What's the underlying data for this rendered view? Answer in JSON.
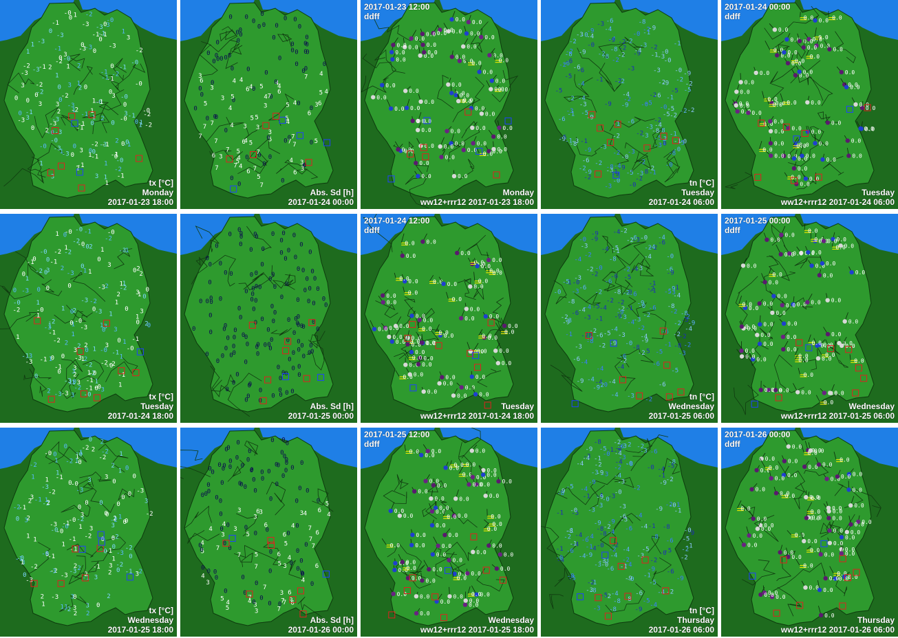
{
  "colors": {
    "sea": "#1f7fe6",
    "outside_land": "#1e6b1e",
    "germany_land": "#2e9a2e",
    "label_text": "#ffffff"
  },
  "rows": [
    {
      "tiles": [
        {
          "type": "tx",
          "variable_label": "tx [°C]",
          "day": "Monday",
          "datetime": "2017-01-23 18:00"
        },
        {
          "type": "sd",
          "variable_label": "Abs. Sd [h]",
          "datetime": "2017-01-24 00:00"
        },
        {
          "type": "ww",
          "top_datetime": "2017-01-23 12:00",
          "top_sub": "ddff",
          "day": "Monday",
          "bottom": "ww12+rrr12 2017-01-23 18:00"
        },
        {
          "type": "tn",
          "variable_label": "tn [°C]",
          "day": "Tuesday",
          "datetime": "2017-01-24 06:00"
        },
        {
          "type": "ww",
          "top_datetime": "2017-01-24 00:00",
          "top_sub": "ddff",
          "day": "Tuesday",
          "bottom": "ww12+rrr12 2017-01-24 06:00"
        }
      ]
    },
    {
      "tiles": [
        {
          "type": "tx",
          "variable_label": "tx [°C]",
          "day": "Tuesday",
          "datetime": "2017-01-24 18:00"
        },
        {
          "type": "sd",
          "variable_label": "Abs. Sd [h]",
          "datetime": "2017-01-25 00:00"
        },
        {
          "type": "ww",
          "top_datetime": "2017-01-24 12:00",
          "top_sub": "ddff",
          "day": "Tuesday",
          "bottom": "ww12+rrr12 2017-01-24 18:00"
        },
        {
          "type": "tn",
          "variable_label": "tn [°C]",
          "day": "Wednesday",
          "datetime": "2017-01-25 06:00"
        },
        {
          "type": "ww",
          "top_datetime": "2017-01-25 00:00",
          "top_sub": "ddff",
          "day": "Wednesday",
          "bottom": "ww12+rrr12 2017-01-25 06:00"
        }
      ]
    },
    {
      "tiles": [
        {
          "type": "tx",
          "variable_label": "tx [°C]",
          "day": "Wednesday",
          "datetime": "2017-01-25 18:00"
        },
        {
          "type": "sd",
          "variable_label": "Abs. Sd [h]",
          "datetime": "2017-01-26 00:00"
        },
        {
          "type": "ww",
          "top_datetime": "2017-01-25 12:00",
          "top_sub": "ddff",
          "day": "Wednesday",
          "bottom": "ww12+rrr12 2017-01-25 18:00"
        },
        {
          "type": "tn",
          "variable_label": "tn [°C]",
          "day": "Thursday",
          "datetime": "2017-01-26 06:00"
        },
        {
          "type": "ww",
          "top_datetime": "2017-01-26 00:00",
          "top_sub": "ddff",
          "day": "Thursday",
          "bottom": "ww12+rrr12 2017-01-26 06:00"
        }
      ]
    }
  ]
}
